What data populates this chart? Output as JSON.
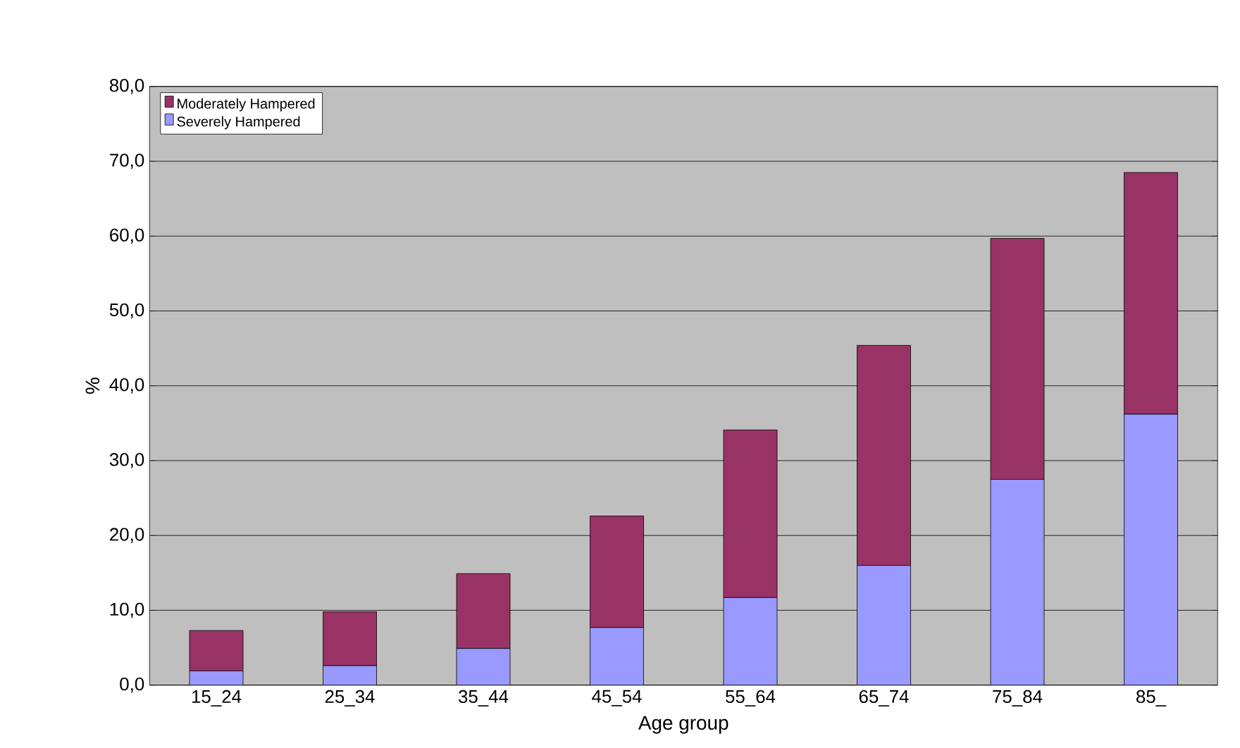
{
  "chart_data": {
    "type": "bar",
    "stacked": true,
    "xlabel": "Age group",
    "ylabel": "%",
    "categories": [
      "15_24",
      "25_34",
      "35_44",
      "45_54",
      "55_64",
      "65_74",
      "75_84",
      "85_"
    ],
    "series": [
      {
        "name": "Severely Hampered",
        "color": "#9999ff",
        "values": [
          1.9,
          2.6,
          4.9,
          7.7,
          11.7,
          16.0,
          27.5,
          36.2
        ]
      },
      {
        "name": "Moderately Hampered",
        "color": "#993366",
        "values": [
          5.4,
          7.2,
          10.0,
          14.9,
          22.4,
          29.4,
          32.2,
          32.3
        ]
      }
    ],
    "ylim": [
      0,
      80
    ],
    "yticks": [
      {
        "value": 0,
        "label": "0,0"
      },
      {
        "value": 10,
        "label": "10,0"
      },
      {
        "value": 20,
        "label": "20,0"
      },
      {
        "value": 30,
        "label": "30,0"
      },
      {
        "value": 40,
        "label": "40,0"
      },
      {
        "value": 50,
        "label": "50,0"
      },
      {
        "value": 60,
        "label": "60,0"
      },
      {
        "value": 70,
        "label": "70,0"
      },
      {
        "value": 80,
        "label": "80,0"
      }
    ],
    "grid": "y",
    "legend": "top left"
  }
}
